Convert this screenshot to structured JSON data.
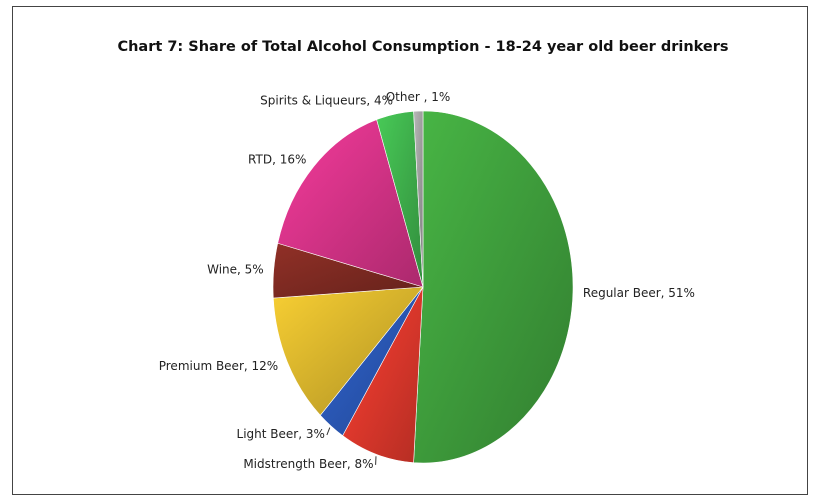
{
  "chart_data": {
    "type": "pie",
    "title": "Chart 7: Share of Total Alcohol Consumption - 18-24 year old beer drinkers",
    "slices": [
      {
        "label": "Regular Beer, 51%",
        "value": 51,
        "color": "#3f9e3c"
      },
      {
        "label": "Midstrength Beer, 8%",
        "value": 8,
        "color": "#e0382c"
      },
      {
        "label": "Light Beer, 3%",
        "value": 3,
        "color": "#2a58b6"
      },
      {
        "label": "Premium Beer, 12%",
        "value": 12,
        "color": "#d8b42c"
      },
      {
        "label": "Wine, 5%",
        "value": 5,
        "color": "#7e2a22"
      },
      {
        "label": "RTD, 16%",
        "value": 16,
        "color": "#d63388"
      },
      {
        "label": "Spirits & Liqueurs, 4%",
        "value": 4,
        "color": "#3fb04c"
      },
      {
        "label": "Other , 1%",
        "value": 1,
        "color": "#a0a0a0"
      }
    ]
  }
}
